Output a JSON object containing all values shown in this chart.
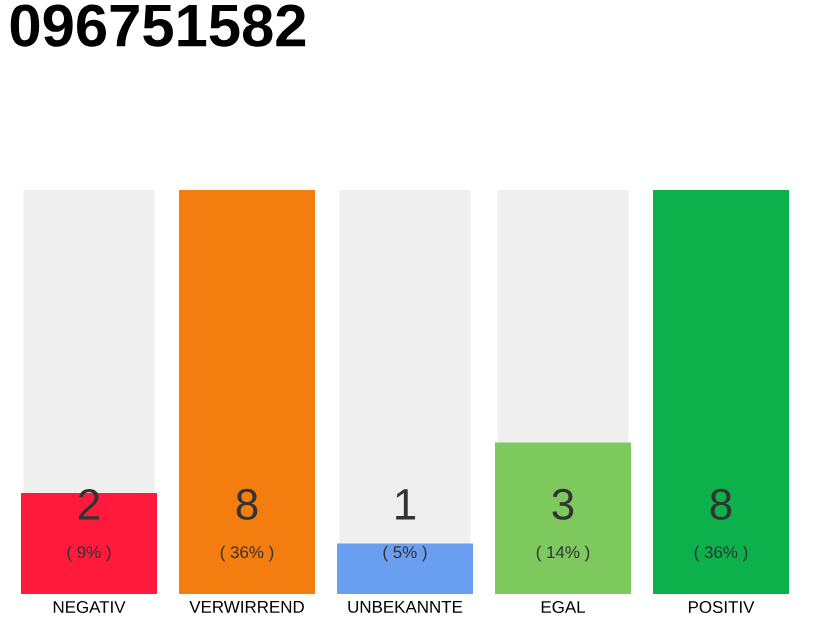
{
  "chart_data": {
    "type": "bar",
    "title": "096751582",
    "categories": [
      "NEGATIV",
      "VERWIRREND",
      "UNBEKANNTE",
      "EGAL",
      "POSITIV"
    ],
    "values": [
      2,
      8,
      1,
      3,
      8
    ],
    "colors": [
      "#ff1a3c",
      "#f47d10",
      "#6a9ef0",
      "#7dc95e",
      "#0db14b"
    ],
    "data_labels": true,
    "annotations": [
      "( 9% )",
      "( 36% )",
      "( 5% )",
      "( 14% )",
      "( 36% )"
    ]
  }
}
